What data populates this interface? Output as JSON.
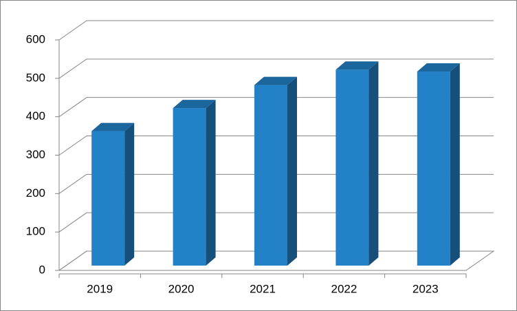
{
  "chart_data": {
    "type": "bar3d",
    "categories": [
      "2019",
      "2020",
      "2021",
      "2022",
      "2023"
    ],
    "values": [
      350,
      410,
      470,
      510,
      505
    ],
    "color": "#2382c7",
    "ylim": [
      0,
      600
    ],
    "yticks": [
      0,
      100,
      200,
      300,
      400,
      500,
      600
    ],
    "grid": true
  }
}
